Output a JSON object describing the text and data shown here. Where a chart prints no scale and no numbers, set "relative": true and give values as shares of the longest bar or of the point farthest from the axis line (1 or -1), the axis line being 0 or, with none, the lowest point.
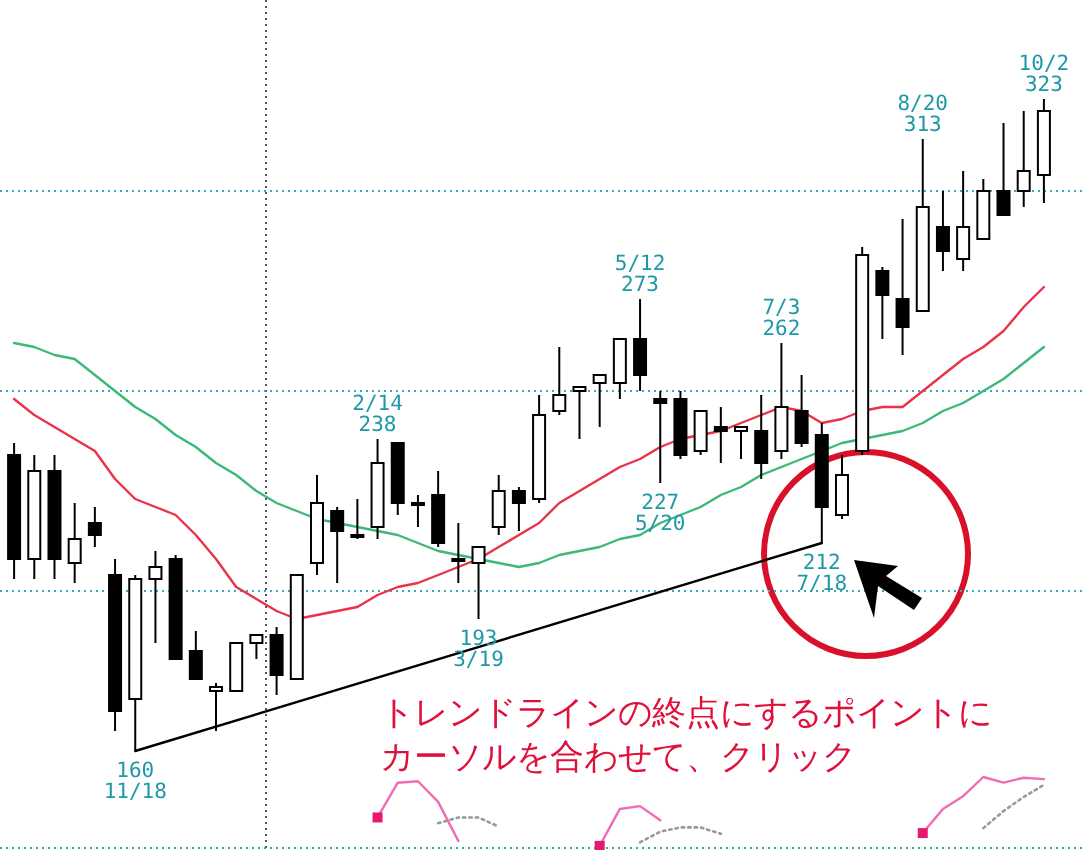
{
  "chart_data": [
    {
      "type": "candlestick",
      "categories": [
        null,
        null,
        null,
        null,
        null,
        null,
        null,
        null,
        null,
        null,
        null,
        null,
        null,
        null,
        null,
        null,
        null,
        null,
        null,
        null,
        null,
        null,
        null,
        null,
        null,
        null,
        null,
        null,
        null,
        null,
        null,
        null,
        null,
        null,
        null,
        null,
        null,
        null,
        null,
        null,
        null,
        null,
        null,
        null,
        null,
        null,
        null,
        null,
        null,
        null,
        null,
        null
      ],
      "ohlc": [
        [
          234,
          237,
          203,
          208
        ],
        [
          208,
          234,
          203,
          230
        ],
        [
          230,
          234,
          203,
          208
        ],
        [
          207,
          222,
          202,
          213
        ],
        [
          217,
          221,
          211,
          214
        ],
        [
          204,
          208,
          165,
          170
        ],
        [
          173,
          204,
          160,
          203
        ],
        [
          203,
          210,
          187,
          206
        ],
        [
          208,
          209,
          183,
          183
        ],
        [
          185,
          190,
          178,
          178
        ],
        [
          175,
          177,
          165,
          176
        ],
        [
          175,
          187,
          175,
          187
        ],
        [
          187,
          189,
          183,
          189
        ],
        [
          189,
          191,
          174,
          179
        ],
        [
          178,
          204,
          178,
          204
        ],
        [
          207,
          229,
          204,
          222
        ],
        [
          220,
          221,
          202,
          215
        ],
        [
          214,
          223,
          213,
          214
        ],
        [
          216,
          238,
          213,
          232
        ],
        [
          237,
          237,
          219,
          222
        ],
        [
          222,
          224,
          216,
          222
        ],
        [
          224,
          230,
          211,
          212
        ],
        [
          208,
          217,
          202,
          208
        ],
        [
          207,
          211,
          193,
          211
        ],
        [
          216,
          229,
          214,
          225
        ],
        [
          225,
          226,
          215,
          222
        ],
        [
          223,
          249,
          222,
          244
        ],
        [
          245,
          261,
          244,
          249
        ],
        [
          250,
          251,
          238,
          251
        ],
        [
          252,
          254,
          241,
          254
        ],
        [
          252,
          263,
          248,
          263
        ],
        [
          263,
          273,
          250,
          254
        ],
        [
          248,
          250,
          227,
          247
        ],
        [
          248,
          250,
          233,
          234
        ],
        [
          235,
          245,
          234,
          245
        ],
        [
          241,
          246,
          232,
          240
        ],
        [
          240,
          241,
          233,
          241
        ],
        [
          240,
          249,
          228,
          232
        ],
        [
          235,
          262,
          233,
          246
        ],
        [
          245,
          254,
          236,
          237
        ],
        [
          239,
          242,
          212,
          221
        ],
        [
          219,
          234,
          218,
          229
        ],
        [
          235,
          286,
          234,
          284
        ],
        [
          280,
          281,
          263,
          274
        ],
        [
          273,
          293,
          259,
          266
        ],
        [
          270,
          313,
          270,
          296
        ],
        [
          291,
          300,
          280,
          285
        ],
        [
          283,
          305,
          280,
          291
        ],
        [
          288,
          303,
          288,
          300
        ],
        [
          300,
          317,
          294,
          294
        ],
        [
          300,
          320,
          296,
          305
        ],
        [
          304,
          323,
          297,
          320
        ]
      ],
      "series": [
        {
          "type": "line",
          "color": "#e8334a",
          "values": [
            248,
            244,
            241,
            238,
            235,
            228,
            223,
            221,
            219,
            214,
            208,
            201,
            198,
            195,
            193,
            194,
            195,
            196,
            199,
            201,
            202,
            204,
            206,
            208,
            211,
            214,
            217,
            222,
            225,
            228,
            231,
            233,
            236,
            238,
            239,
            240,
            242,
            244,
            246,
            245,
            242,
            243,
            245,
            246,
            246,
            250,
            254,
            258,
            261,
            265,
            271,
            276
          ]
        },
        {
          "type": "line",
          "color": "#3cb878",
          "values": [
            262,
            261,
            259,
            258,
            254,
            250,
            246,
            243,
            239,
            236,
            232,
            229,
            225,
            222,
            220,
            218,
            217,
            216,
            215,
            214,
            212,
            210,
            209,
            208,
            207,
            206,
            207,
            209,
            210,
            211,
            213,
            214,
            217,
            219,
            221,
            224,
            226,
            229,
            231,
            233,
            235,
            237,
            238,
            239,
            240,
            242,
            245,
            247,
            250,
            253,
            257,
            261
          ]
        },
        {
          "type": "line",
          "color": "#000000",
          "values": [
            null,
            null,
            null,
            null,
            null,
            null,
            160,
            null,
            null,
            null,
            null,
            null,
            null,
            null,
            null,
            null,
            null,
            null,
            null,
            null,
            null,
            null,
            null,
            null,
            null,
            null,
            null,
            null,
            null,
            null,
            null,
            null,
            null,
            null,
            null,
            null,
            null,
            null,
            null,
            null,
            212,
            null,
            null,
            null,
            null,
            null,
            null,
            null,
            null,
            null,
            null,
            null
          ]
        }
      ],
      "yticks": [
        {
          "value": 200,
          "label": null
        },
        {
          "value": 250,
          "label": null
        },
        {
          "value": 300,
          "label": null
        }
      ],
      "grid": "y",
      "annotations": [
        {
          "text": "160\n11/18",
          "y": 160
        },
        {
          "text": "2/14\n238",
          "y": 238
        },
        {
          "text": "193\n3/19",
          "y": 193
        },
        {
          "text": "5/12\n273",
          "y": 273
        },
        {
          "text": "227\n5/20",
          "y": 227
        },
        {
          "text": "7/3\n262",
          "y": 262
        },
        {
          "text": "212\n7/18",
          "y": 212
        },
        {
          "text": "8/20\n313",
          "y": 313
        },
        {
          "text": "10/2\n323",
          "y": 323
        },
        "トレンドラインの終点にするポイントに",
        "カーソルを合わせて、クリック"
      ]
    },
    {
      "type": "line",
      "relative": true,
      "categories": [
        null,
        null,
        null,
        null,
        null,
        null,
        null,
        null,
        null,
        null,
        null,
        null,
        null,
        null,
        null,
        null,
        null,
        null,
        null,
        null,
        null,
        null,
        null,
        null,
        null,
        null,
        null,
        null,
        null,
        null,
        null,
        null,
        null,
        null,
        null,
        null,
        null,
        null,
        null,
        null,
        null,
        null,
        null,
        null,
        null,
        null,
        null,
        null,
        null,
        null,
        null,
        null
      ],
      "series": [
        {
          "color": "#f06cb4",
          "values": [
            null,
            null,
            null,
            null,
            null,
            null,
            null,
            null,
            null,
            null,
            null,
            null,
            null,
            null,
            null,
            null,
            null,
            null,
            0.43,
            0.92,
            0.94,
            0.65,
            0.1,
            null,
            null,
            null,
            null,
            null,
            null,
            0.03,
            0.55,
            0.59,
            0.39,
            null,
            null,
            null,
            null,
            null,
            null,
            null,
            null,
            null,
            null,
            null,
            null,
            0.21,
            0.55,
            0.73,
            1,
            0.92,
            0.99,
            0.97
          ]
        },
        {
          "color": "#999999",
          "line_style": "dotted",
          "values": [
            null,
            null,
            null,
            null,
            null,
            null,
            null,
            null,
            null,
            null,
            null,
            null,
            null,
            null,
            null,
            null,
            null,
            null,
            null,
            null,
            null,
            0.35,
            0.43,
            0.43,
            0.3,
            null,
            null,
            null,
            null,
            null,
            null,
            0.08,
            0.23,
            0.29,
            0.29,
            0.2,
            null,
            null,
            null,
            null,
            null,
            null,
            null,
            null,
            null,
            null,
            null,
            null,
            0.28,
            0.52,
            0.72,
            0.89
          ]
        },
        {
          "type": "scatter",
          "color": "#e8186e",
          "marker": "square",
          "values": [
            null,
            null,
            null,
            null,
            null,
            null,
            null,
            null,
            null,
            null,
            null,
            null,
            null,
            null,
            null,
            null,
            null,
            null,
            0.43,
            null,
            null,
            null,
            null,
            null,
            null,
            null,
            null,
            null,
            null,
            0.03,
            null,
            null,
            null,
            null,
            null,
            null,
            null,
            null,
            null,
            null,
            null,
            null,
            null,
            null,
            null,
            0.21,
            null,
            null,
            null,
            null,
            null,
            null
          ]
        }
      ]
    }
  ]
}
